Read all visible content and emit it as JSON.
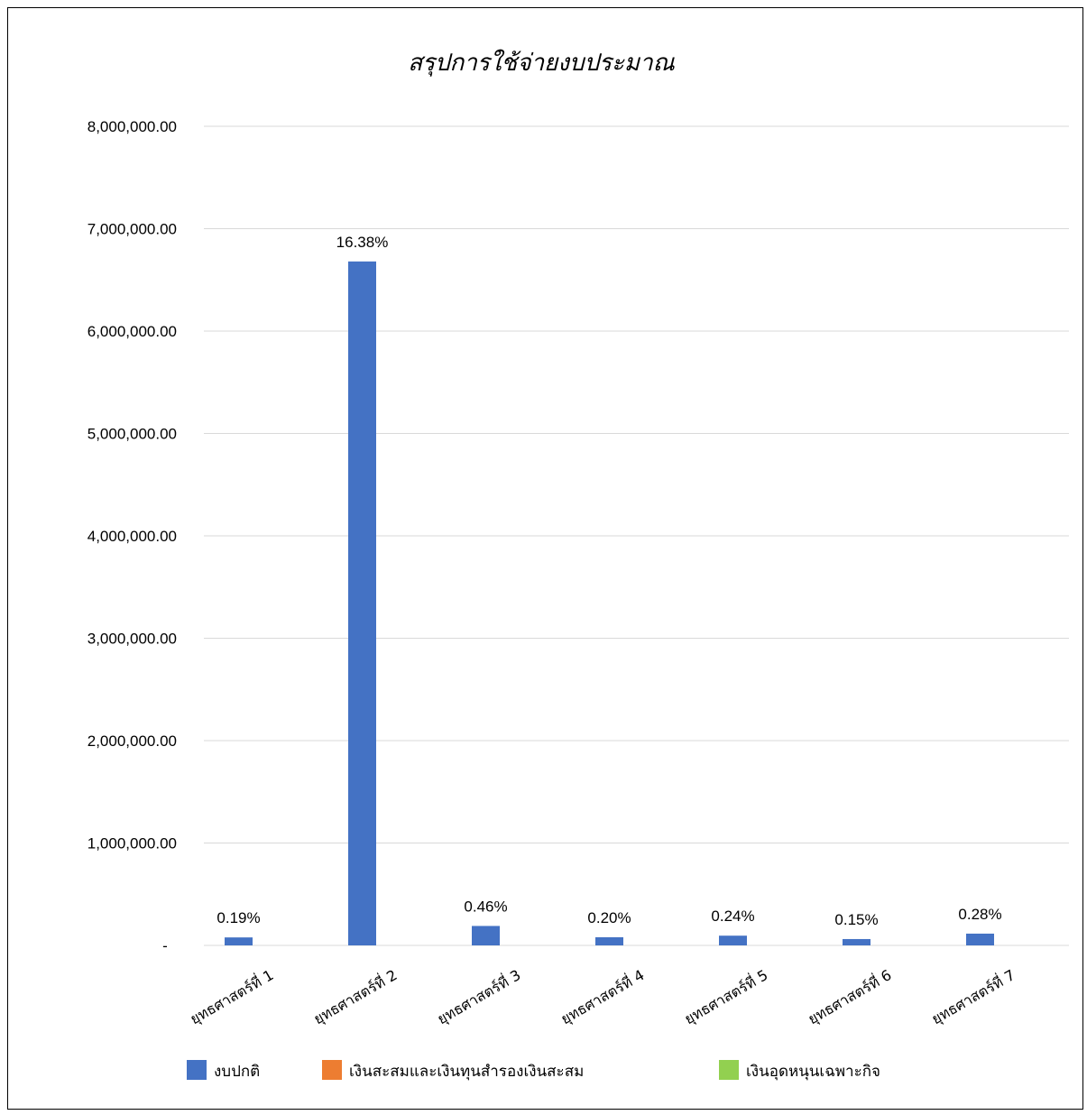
{
  "chart_data": {
    "type": "bar",
    "title": "สรุปการใช้จ่ายงบประมาณ",
    "xlabel": "",
    "ylabel": "",
    "ylim": [
      0,
      8000000
    ],
    "yticks": [
      "-",
      "1,000,000.00",
      "2,000,000.00",
      "3,000,000.00",
      "4,000,000.00",
      "5,000,000.00",
      "6,000,000.00",
      "7,000,000.00",
      "8,000,000.00"
    ],
    "ytick_values": [
      0,
      1000000,
      2000000,
      3000000,
      4000000,
      5000000,
      6000000,
      7000000,
      8000000
    ],
    "grid": true,
    "legend_position": "bottom",
    "categories": [
      "ยุทธศาสตร์ที่ 1",
      "ยุทธศาสตร์ที่ 2",
      "ยุทธศาสตร์ที่ 3",
      "ยุทธศาสตร์ที่ 4",
      "ยุทธศาสตร์ที่ 5",
      "ยุทธศาสตร์ที่ 6",
      "ยุทธศาสตร์ที่ 7"
    ],
    "series": [
      {
        "name": "งบปกติ",
        "color": "#4472c4",
        "values": [
          78000,
          6680000,
          190000,
          80000,
          95000,
          62000,
          115000
        ],
        "labels": [
          "0.19%",
          "16.38%",
          "0.46%",
          "0.20%",
          "0.24%",
          "0.15%",
          "0.28%"
        ]
      },
      {
        "name": "เงินสะสมและเงินทุนสำรองเงินสะสม",
        "color": "#ed7d31",
        "values": [
          0,
          0,
          0,
          0,
          0,
          0,
          0
        ]
      },
      {
        "name": "เงินอุดหนุนเฉพาะกิจ",
        "color": "#92d050",
        "values": [
          0,
          0,
          0,
          0,
          0,
          0,
          0
        ]
      }
    ]
  }
}
